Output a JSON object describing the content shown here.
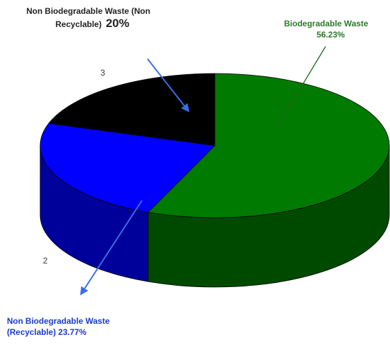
{
  "chart_data": {
    "type": "pie",
    "style": "3d",
    "title": "",
    "slices": [
      {
        "label": "Biodegradable Waste",
        "value": 56.23,
        "value_label": "56.23%",
        "index_label": "",
        "color": "#007a00",
        "side_color": "#004a00"
      },
      {
        "label": "Non Biodegradable Waste (Recyclable)",
        "value_label": "23.77%",
        "value": 23.77,
        "index_label": "2",
        "color": "#0000ff",
        "side_color": "#00009a"
      },
      {
        "label": "Non Biodegradable Waste (Non Recyclable)",
        "value_label": "20%",
        "value": 20,
        "index_label": "3",
        "color": "#000000",
        "side_color": "#000000"
      }
    ],
    "labels": {
      "green_line1": "Biodegradable Waste",
      "green_line2": "56.23%",
      "black_line1": "Non Biodegradable Waste (Non",
      "black_line2": "Recyclable)",
      "black_pct": "20%",
      "blue_text": "Non Biodegradable Waste (Recyclable) 23.77%"
    },
    "legend": "none",
    "grid": false
  }
}
